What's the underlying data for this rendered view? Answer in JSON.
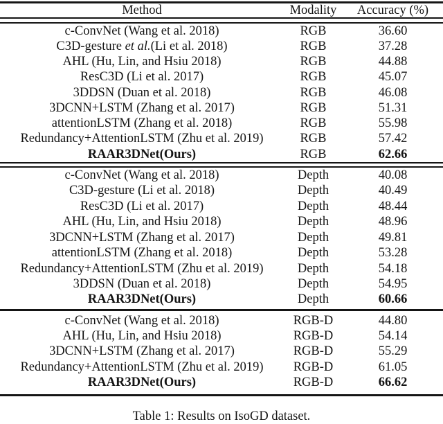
{
  "table": {
    "headers": {
      "method": "Method",
      "modality": "Modality",
      "accuracy": "Accuracy (%)"
    },
    "sections": [
      {
        "name": "RGB",
        "rows": [
          {
            "method": "c-ConvNet (Wang et al. 2018)",
            "modality": "RGB",
            "accuracy": "36.60",
            "bold": false
          },
          {
            "method_parts": [
              {
                "t": "C3D-gesture ",
                "i": false
              },
              {
                "t": "et al.",
                "i": true
              },
              {
                "t": "(Li et al. 2018)",
                "i": false
              }
            ],
            "modality": "RGB",
            "accuracy": "37.28",
            "bold": false
          },
          {
            "method": "AHL (Hu, Lin, and Hsiu 2018)",
            "modality": "RGB",
            "accuracy": "44.88",
            "bold": false
          },
          {
            "method": "ResC3D (Li et al. 2017)",
            "modality": "RGB",
            "accuracy": "45.07",
            "bold": false
          },
          {
            "method": "3DDSN (Duan et al. 2018)",
            "modality": "RGB",
            "accuracy": "46.08",
            "bold": false
          },
          {
            "method": "3DCNN+LSTM (Zhang et al. 2017)",
            "modality": "RGB",
            "accuracy": "51.31",
            "bold": false
          },
          {
            "method": "attentionLSTM (Zhang et al. 2018)",
            "modality": "RGB",
            "accuracy": "55.98",
            "bold": false
          },
          {
            "method": "Redundancy+AttentionLSTM (Zhu et al. 2019)",
            "modality": "RGB",
            "accuracy": "57.42",
            "bold": false
          },
          {
            "method": "RAAR3DNet(Ours)",
            "modality": "RGB",
            "accuracy": "62.66",
            "bold": true
          }
        ]
      },
      {
        "name": "Depth",
        "rows": [
          {
            "method": "c-ConvNet (Wang et al. 2018)",
            "modality": "Depth",
            "accuracy": "40.08",
            "bold": false
          },
          {
            "method": "C3D-gesture (Li et al. 2018)",
            "modality": "Depth",
            "accuracy": "40.49",
            "bold": false
          },
          {
            "method": "ResC3D (Li et al. 2017)",
            "modality": "Depth",
            "accuracy": "48.44",
            "bold": false
          },
          {
            "method": "AHL (Hu, Lin, and Hsiu 2018)",
            "modality": "Depth",
            "accuracy": "48.96",
            "bold": false
          },
          {
            "method": "3DCNN+LSTM (Zhang et al. 2017)",
            "modality": "Depth",
            "accuracy": "49.81",
            "bold": false
          },
          {
            "method": "attentionLSTM (Zhang et al. 2018)",
            "modality": "Depth",
            "accuracy": "53.28",
            "bold": false
          },
          {
            "method": "Redundancy+AttentionLSTM (Zhu et al. 2019)",
            "modality": "Depth",
            "accuracy": "54.18",
            "bold": false
          },
          {
            "method": "3DDSN (Duan et al. 2018)",
            "modality": "Depth",
            "accuracy": "54.95",
            "bold": false
          },
          {
            "method": "RAAR3DNet(Ours)",
            "modality": "Depth",
            "accuracy": "60.66",
            "bold": true
          }
        ]
      },
      {
        "name": "RGB-D",
        "rows": [
          {
            "method": "c-ConvNet (Wang et al. 2018)",
            "modality": "RGB-D",
            "accuracy": "44.80",
            "bold": false
          },
          {
            "method": "AHL (Hu, Lin, and Hsiu 2018)",
            "modality": "RGB-D",
            "accuracy": "54.14",
            "bold": false
          },
          {
            "method": "3DCNN+LSTM (Zhang et al. 2017)",
            "modality": "RGB-D",
            "accuracy": "55.29",
            "bold": false
          },
          {
            "method": "Redundancy+AttentionLSTM (Zhu et al. 2019)",
            "modality": "RGB-D",
            "accuracy": "61.05",
            "bold": false
          },
          {
            "method": "RAAR3DNet(Ours)",
            "modality": "RGB-D",
            "accuracy": "66.62",
            "bold": true
          }
        ]
      }
    ]
  },
  "caption": "Table 1: Results on IsoGD dataset.",
  "colors": {
    "text": "#151515",
    "background": "#ffffff",
    "rule": "#151515"
  }
}
